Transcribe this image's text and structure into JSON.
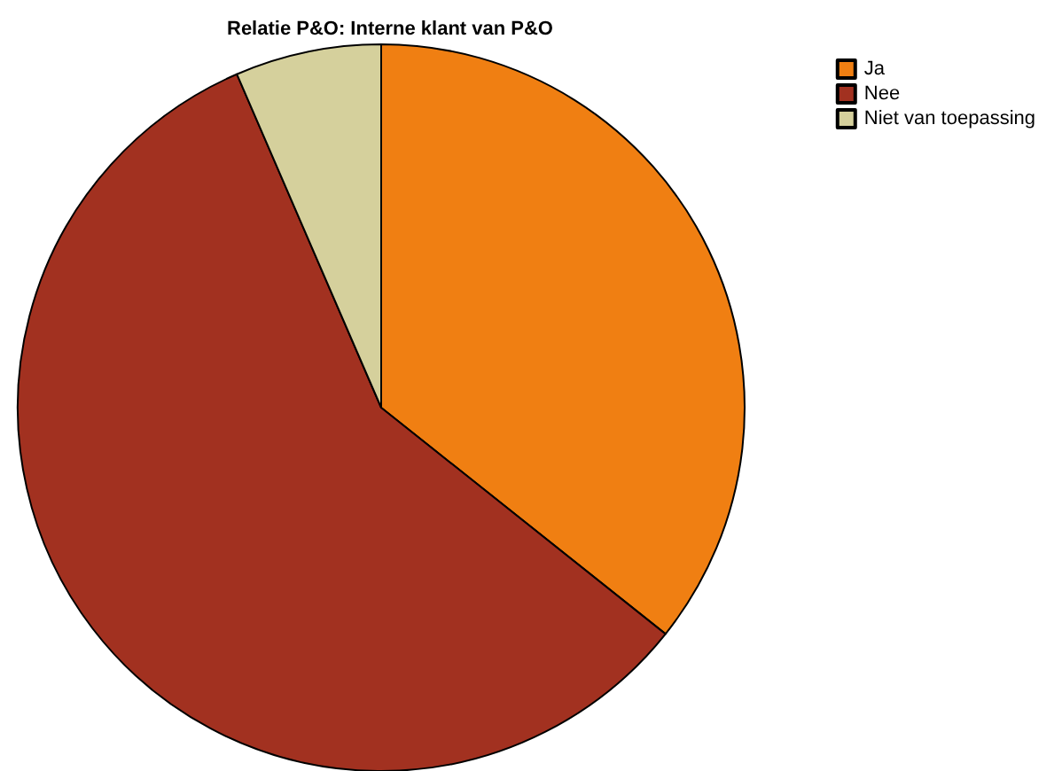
{
  "chart_data": {
    "type": "pie",
    "title": "Relatie P&O: Interne klant van P&O",
    "categories": [
      "Ja",
      "Nee",
      "Niet van toepassing"
    ],
    "values": [
      35.7,
      57.8,
      6.5
    ],
    "colors": [
      "#f07f12",
      "#a23120",
      "#d5d09c"
    ],
    "legend": "top right"
  }
}
